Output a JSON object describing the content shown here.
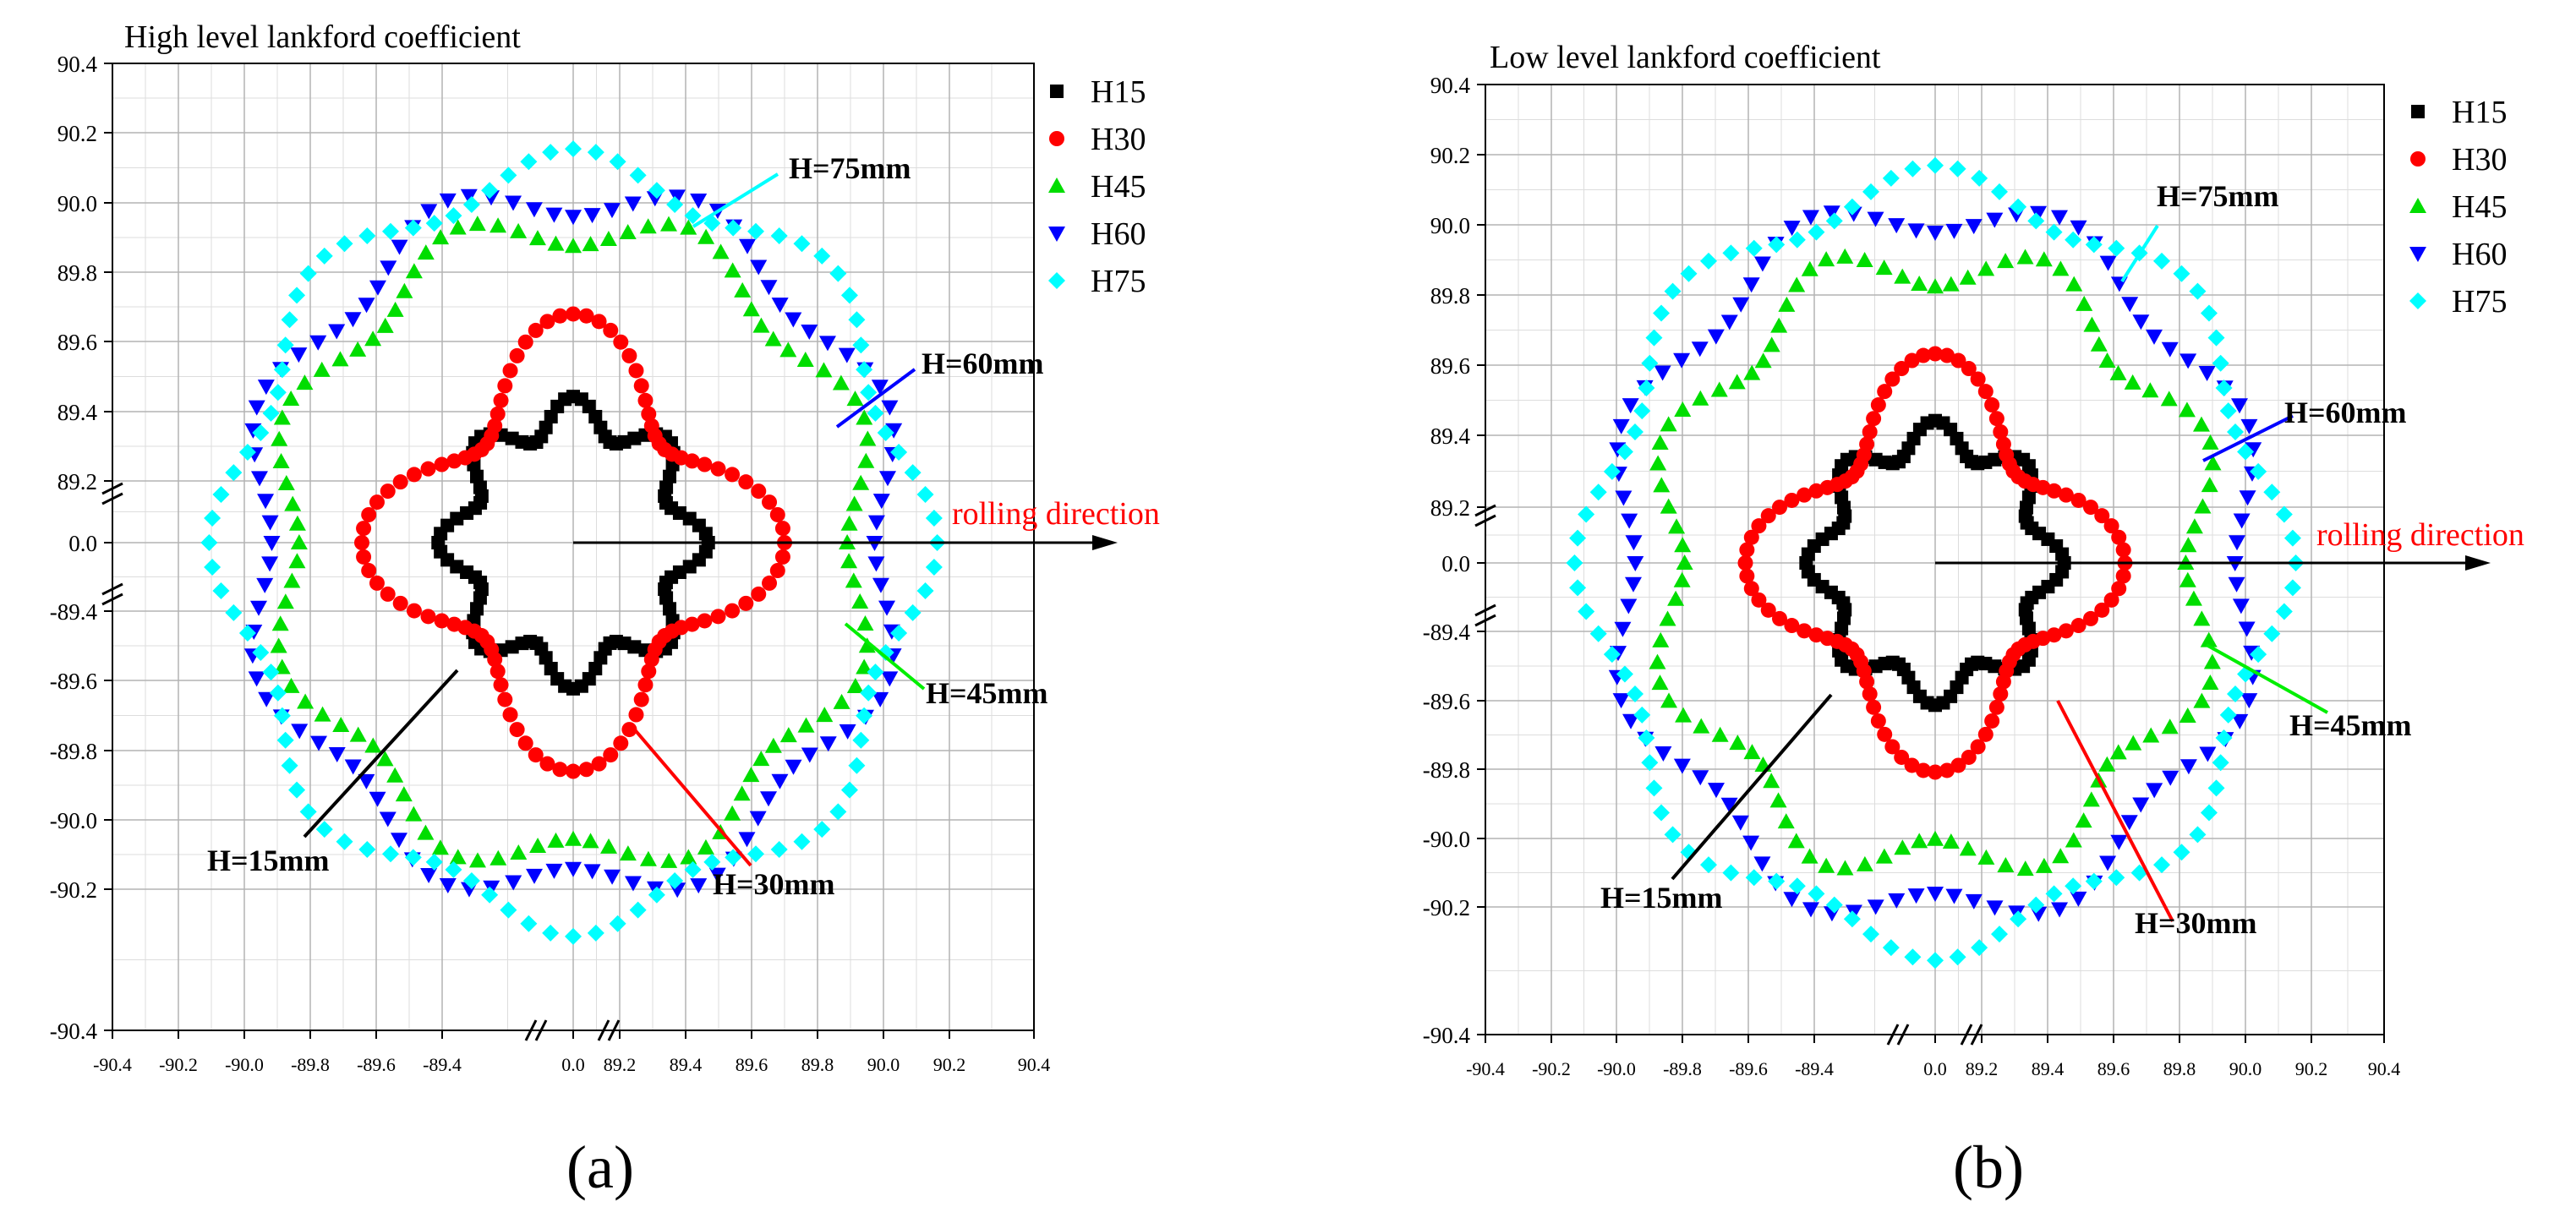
{
  "figure": {
    "panels": [
      "panel_a",
      "panel_b"
    ]
  },
  "chart_data": [
    {
      "id": "panel_a",
      "type": "scatter",
      "title": "High level lankford coefficient",
      "caption": "(a)",
      "x_ticks": [
        "-90.4",
        "-90.2",
        "-90.0",
        "-89.8",
        "-89.6",
        "-89.4",
        "0.0",
        "89.2",
        "89.4",
        "89.6",
        "89.8",
        "90.0",
        "90.2",
        "90.4"
      ],
      "y_ticks": [
        "90.4",
        "90.2",
        "90.0",
        "89.8",
        "89.6",
        "89.4",
        "89.2",
        "0.0",
        "-89.4",
        "-89.6",
        "-89.8",
        "-90.0",
        "-90.2",
        "-90.4"
      ],
      "axis_note": "Broken axes: each side maps |value| from 89.2 (centre) to 90.4 (edge)",
      "legend": [
        "H15",
        "H30",
        "H45",
        "H60",
        "H75"
      ],
      "direction_label": "rolling direction",
      "series": [
        {
          "name": "H15",
          "label": "H=15mm",
          "marker": "square",
          "color": "#000000",
          "base": 89.5,
          "amp": 0.045,
          "lobes": 8,
          "phase": 0.0
        },
        {
          "name": "H30",
          "label": "H=30mm",
          "marker": "circle",
          "color": "#ff0000",
          "base": 89.63,
          "amp": 0.11,
          "lobes": 4,
          "phase": 0.0
        },
        {
          "name": "H45",
          "label": "H=45mm",
          "marker": "triangle-up",
          "color": "#00dd00",
          "base": 89.95,
          "amp": 0.05,
          "lobes": 8,
          "phase": 0.39
        },
        {
          "name": "H60",
          "label": "H=60mm",
          "marker": "triangle-down",
          "color": "#0000ff",
          "base": 90.02,
          "amp": 0.05,
          "lobes": 8,
          "phase": 0.39
        },
        {
          "name": "H75",
          "label": "H=75mm",
          "marker": "diamond",
          "color": "#00ffff",
          "base": 90.08,
          "amp": 0.05,
          "lobes": 8,
          "phase": 0.0
        }
      ]
    },
    {
      "id": "panel_b",
      "type": "scatter",
      "title": "Low level lankford coefficient",
      "caption": "(b)",
      "x_ticks": [
        "-90.4",
        "-90.2",
        "-90.0",
        "-89.8",
        "-89.6",
        "-89.4",
        "0.0",
        "89.2",
        "89.4",
        "89.6",
        "89.8",
        "90.0",
        "90.2",
        "90.4"
      ],
      "y_ticks": [
        "90.4",
        "90.2",
        "90.0",
        "89.8",
        "89.6",
        "89.4",
        "89.2",
        "0.0",
        "-89.4",
        "-89.6",
        "-89.8",
        "-90.0",
        "-90.2",
        "-90.4"
      ],
      "axis_note": "Broken axes: each side maps |value| from 89.2 (centre) to 90.4 (edge)",
      "legend": [
        "H15",
        "H30",
        "H45",
        "H60",
        "H75"
      ],
      "direction_label": "rolling direction",
      "series": [
        {
          "name": "H15",
          "label": "H=15mm",
          "marker": "square",
          "color": "#000000",
          "base": 89.5,
          "amp": 0.04,
          "lobes": 8,
          "phase": 0.0
        },
        {
          "name": "H30",
          "label": "H=30mm",
          "marker": "circle",
          "color": "#ff0000",
          "base": 89.6,
          "amp": 0.1,
          "lobes": 4,
          "phase": 0.0
        },
        {
          "name": "H45",
          "label": "H=45mm",
          "marker": "triangle-up",
          "color": "#00dd00",
          "base": 89.92,
          "amp": 0.06,
          "lobes": 8,
          "phase": 0.39
        },
        {
          "name": "H60",
          "label": "H=60mm",
          "marker": "triangle-down",
          "color": "#0000ff",
          "base": 90.04,
          "amp": 0.05,
          "lobes": 8,
          "phase": 0.39
        },
        {
          "name": "H75",
          "label": "H=75mm",
          "marker": "diamond",
          "color": "#00ffff",
          "base": 90.1,
          "amp": 0.05,
          "lobes": 8,
          "phase": 0.0
        }
      ]
    }
  ]
}
